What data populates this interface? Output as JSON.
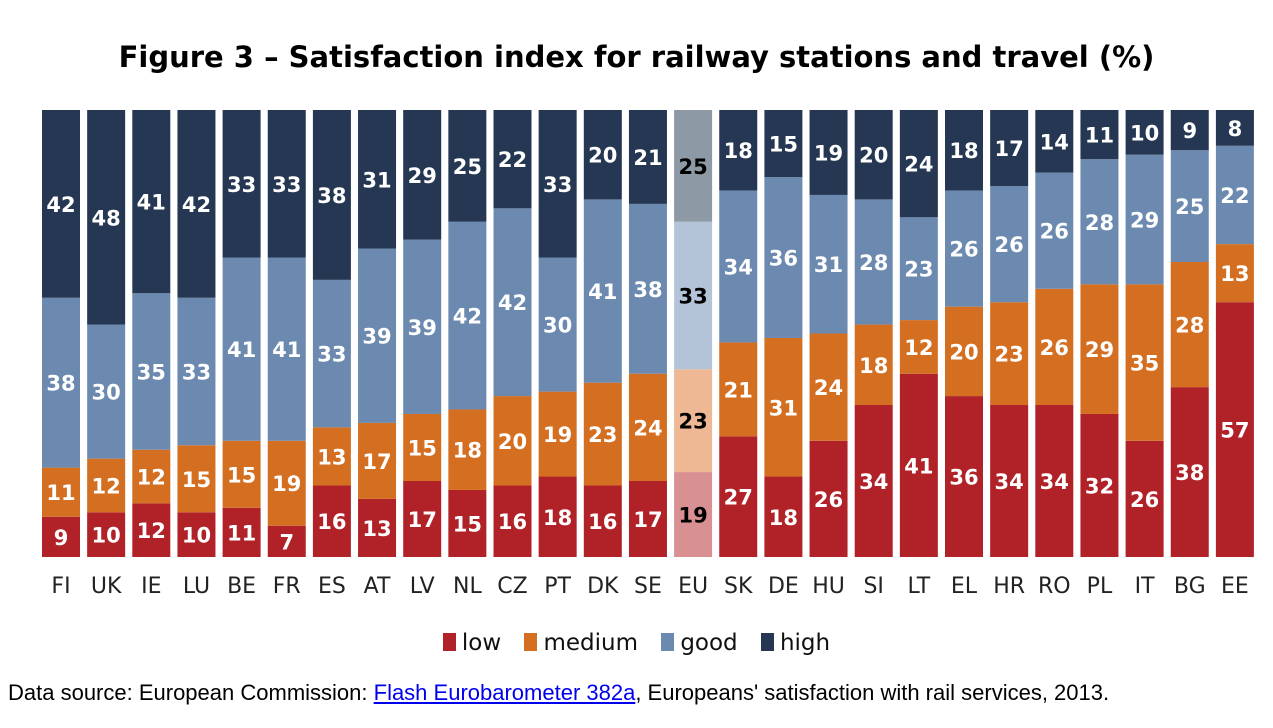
{
  "chart_data": {
    "type": "bar",
    "stacked": true,
    "normalized": true,
    "title": "Figure 3 – Satisfaction index for railway stations and travel (%)",
    "xlabel": "",
    "ylabel": "",
    "categories": [
      "FI",
      "UK",
      "IE",
      "LU",
      "BE",
      "FR",
      "ES",
      "AT",
      "LV",
      "NL",
      "CZ",
      "PT",
      "DK",
      "SE",
      "EU",
      "SK",
      "DE",
      "HU",
      "SI",
      "LT",
      "EL",
      "HR",
      "RO",
      "PL",
      "IT",
      "BG",
      "EE"
    ],
    "highlight_category": "EU",
    "series": [
      {
        "name": "low",
        "color": "#B02228",
        "highlight_color": "#D99092",
        "values": [
          9,
          10,
          12,
          10,
          11,
          7,
          16,
          13,
          17,
          15,
          16,
          18,
          16,
          17,
          19,
          27,
          18,
          26,
          34,
          41,
          36,
          34,
          34,
          32,
          26,
          38,
          57
        ]
      },
      {
        "name": "medium",
        "color": "#D46F22",
        "highlight_color": "#EDB893",
        "values": [
          11,
          12,
          12,
          15,
          15,
          19,
          13,
          17,
          15,
          18,
          20,
          19,
          23,
          24,
          23,
          21,
          31,
          24,
          18,
          12,
          20,
          23,
          26,
          29,
          35,
          28,
          13
        ]
      },
      {
        "name": "good",
        "color": "#6C8AB0",
        "highlight_color": "#B4C4D8",
        "values": [
          38,
          30,
          35,
          33,
          41,
          41,
          33,
          39,
          39,
          42,
          42,
          30,
          41,
          38,
          33,
          34,
          36,
          31,
          28,
          23,
          26,
          26,
          26,
          28,
          29,
          25,
          22
        ]
      },
      {
        "name": "high",
        "color": "#253752",
        "highlight_color": "#8E99A6",
        "values": [
          42,
          48,
          41,
          42,
          33,
          33,
          38,
          31,
          29,
          25,
          22,
          33,
          20,
          21,
          25,
          18,
          15,
          19,
          20,
          24,
          18,
          17,
          14,
          11,
          10,
          9,
          8
        ]
      }
    ],
    "legend": "bottom",
    "grid": false
  },
  "source": {
    "prefix": "Data source: European Commission: ",
    "link": "Flash Eurobarometer 382a",
    "suffix": ", Europeans' satisfaction with rail services, 2013."
  }
}
